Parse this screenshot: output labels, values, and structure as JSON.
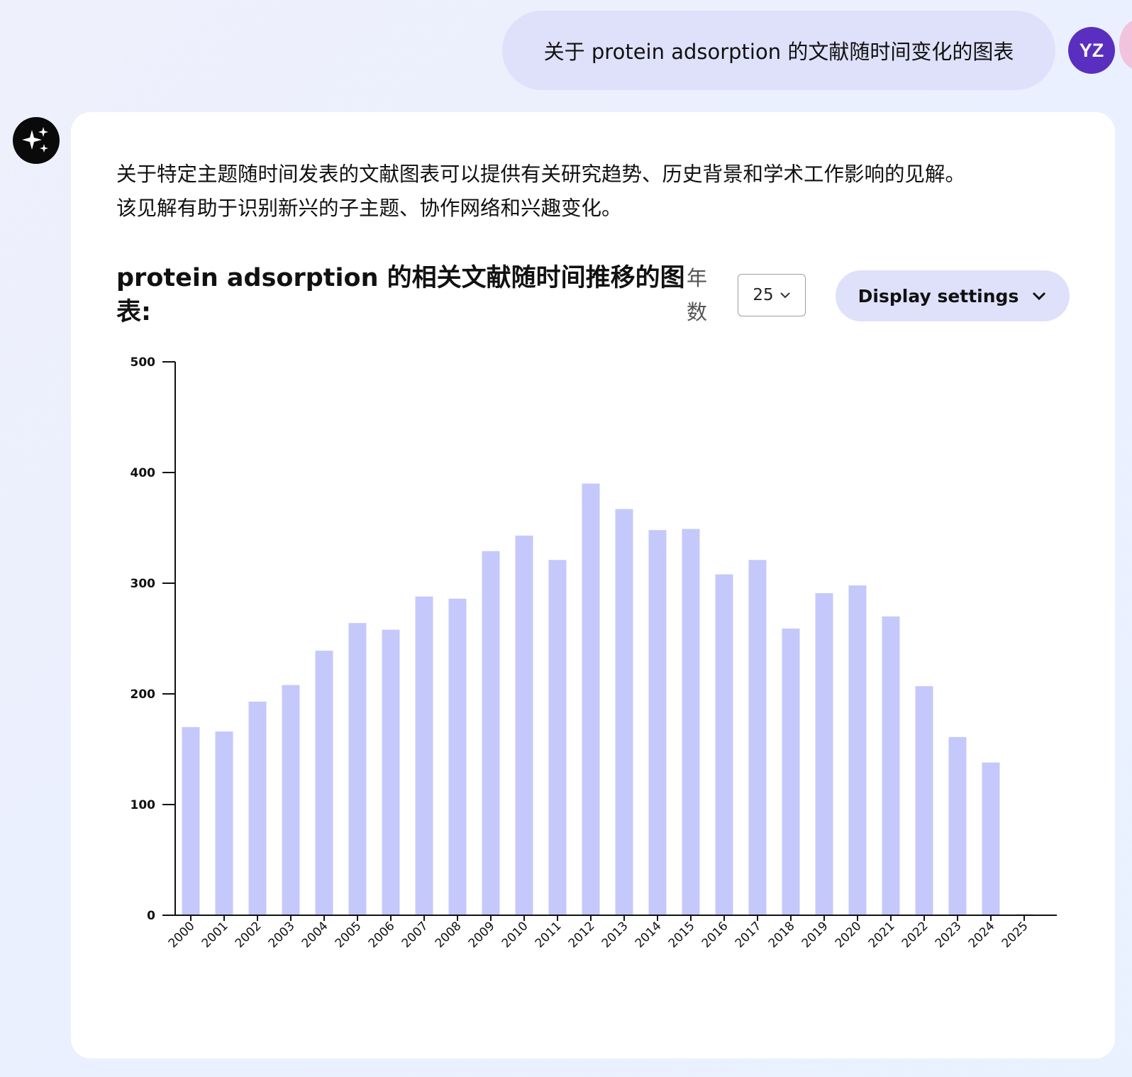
{
  "user_message": "关于 protein adsorption 的文献随时间变化的图表",
  "avatar": {
    "initials": "YZ",
    "color": "#5a2fbf"
  },
  "assistant": {
    "icon": "sparkles-icon",
    "intro_line1": "关于特定主题随时间发表的文献图表可以提供有关研究趋势、历史背景和学术工作影响的见解。",
    "intro_line2": "该见解有助于识别新兴的子主题、协作网络和兴趣变化。"
  },
  "controls": {
    "chart_heading": "protein adsorption 的相关文献随时间推移的图表:",
    "years_label": "年数",
    "years_value": "25",
    "display_settings": "Display settings"
  },
  "colors": {
    "bar": "#c5c8fb",
    "accent": "#dfe1fb"
  },
  "chart_data": {
    "type": "bar",
    "categories": [
      "2000",
      "2001",
      "2002",
      "2003",
      "2004",
      "2005",
      "2006",
      "2007",
      "2008",
      "2009",
      "2010",
      "2011",
      "2012",
      "2013",
      "2014",
      "2015",
      "2016",
      "2017",
      "2018",
      "2019",
      "2020",
      "2021",
      "2022",
      "2023",
      "2024",
      "2025"
    ],
    "values": [
      170,
      166,
      193,
      208,
      239,
      264,
      258,
      288,
      286,
      329,
      343,
      321,
      390,
      367,
      348,
      349,
      308,
      321,
      259,
      291,
      298,
      270,
      207,
      161,
      138,
      1
    ],
    "ylim": [
      0,
      500
    ],
    "yticks": [
      0,
      100,
      200,
      300,
      400,
      500
    ],
    "grid": false,
    "title": "",
    "xlabel": "",
    "ylabel": ""
  }
}
